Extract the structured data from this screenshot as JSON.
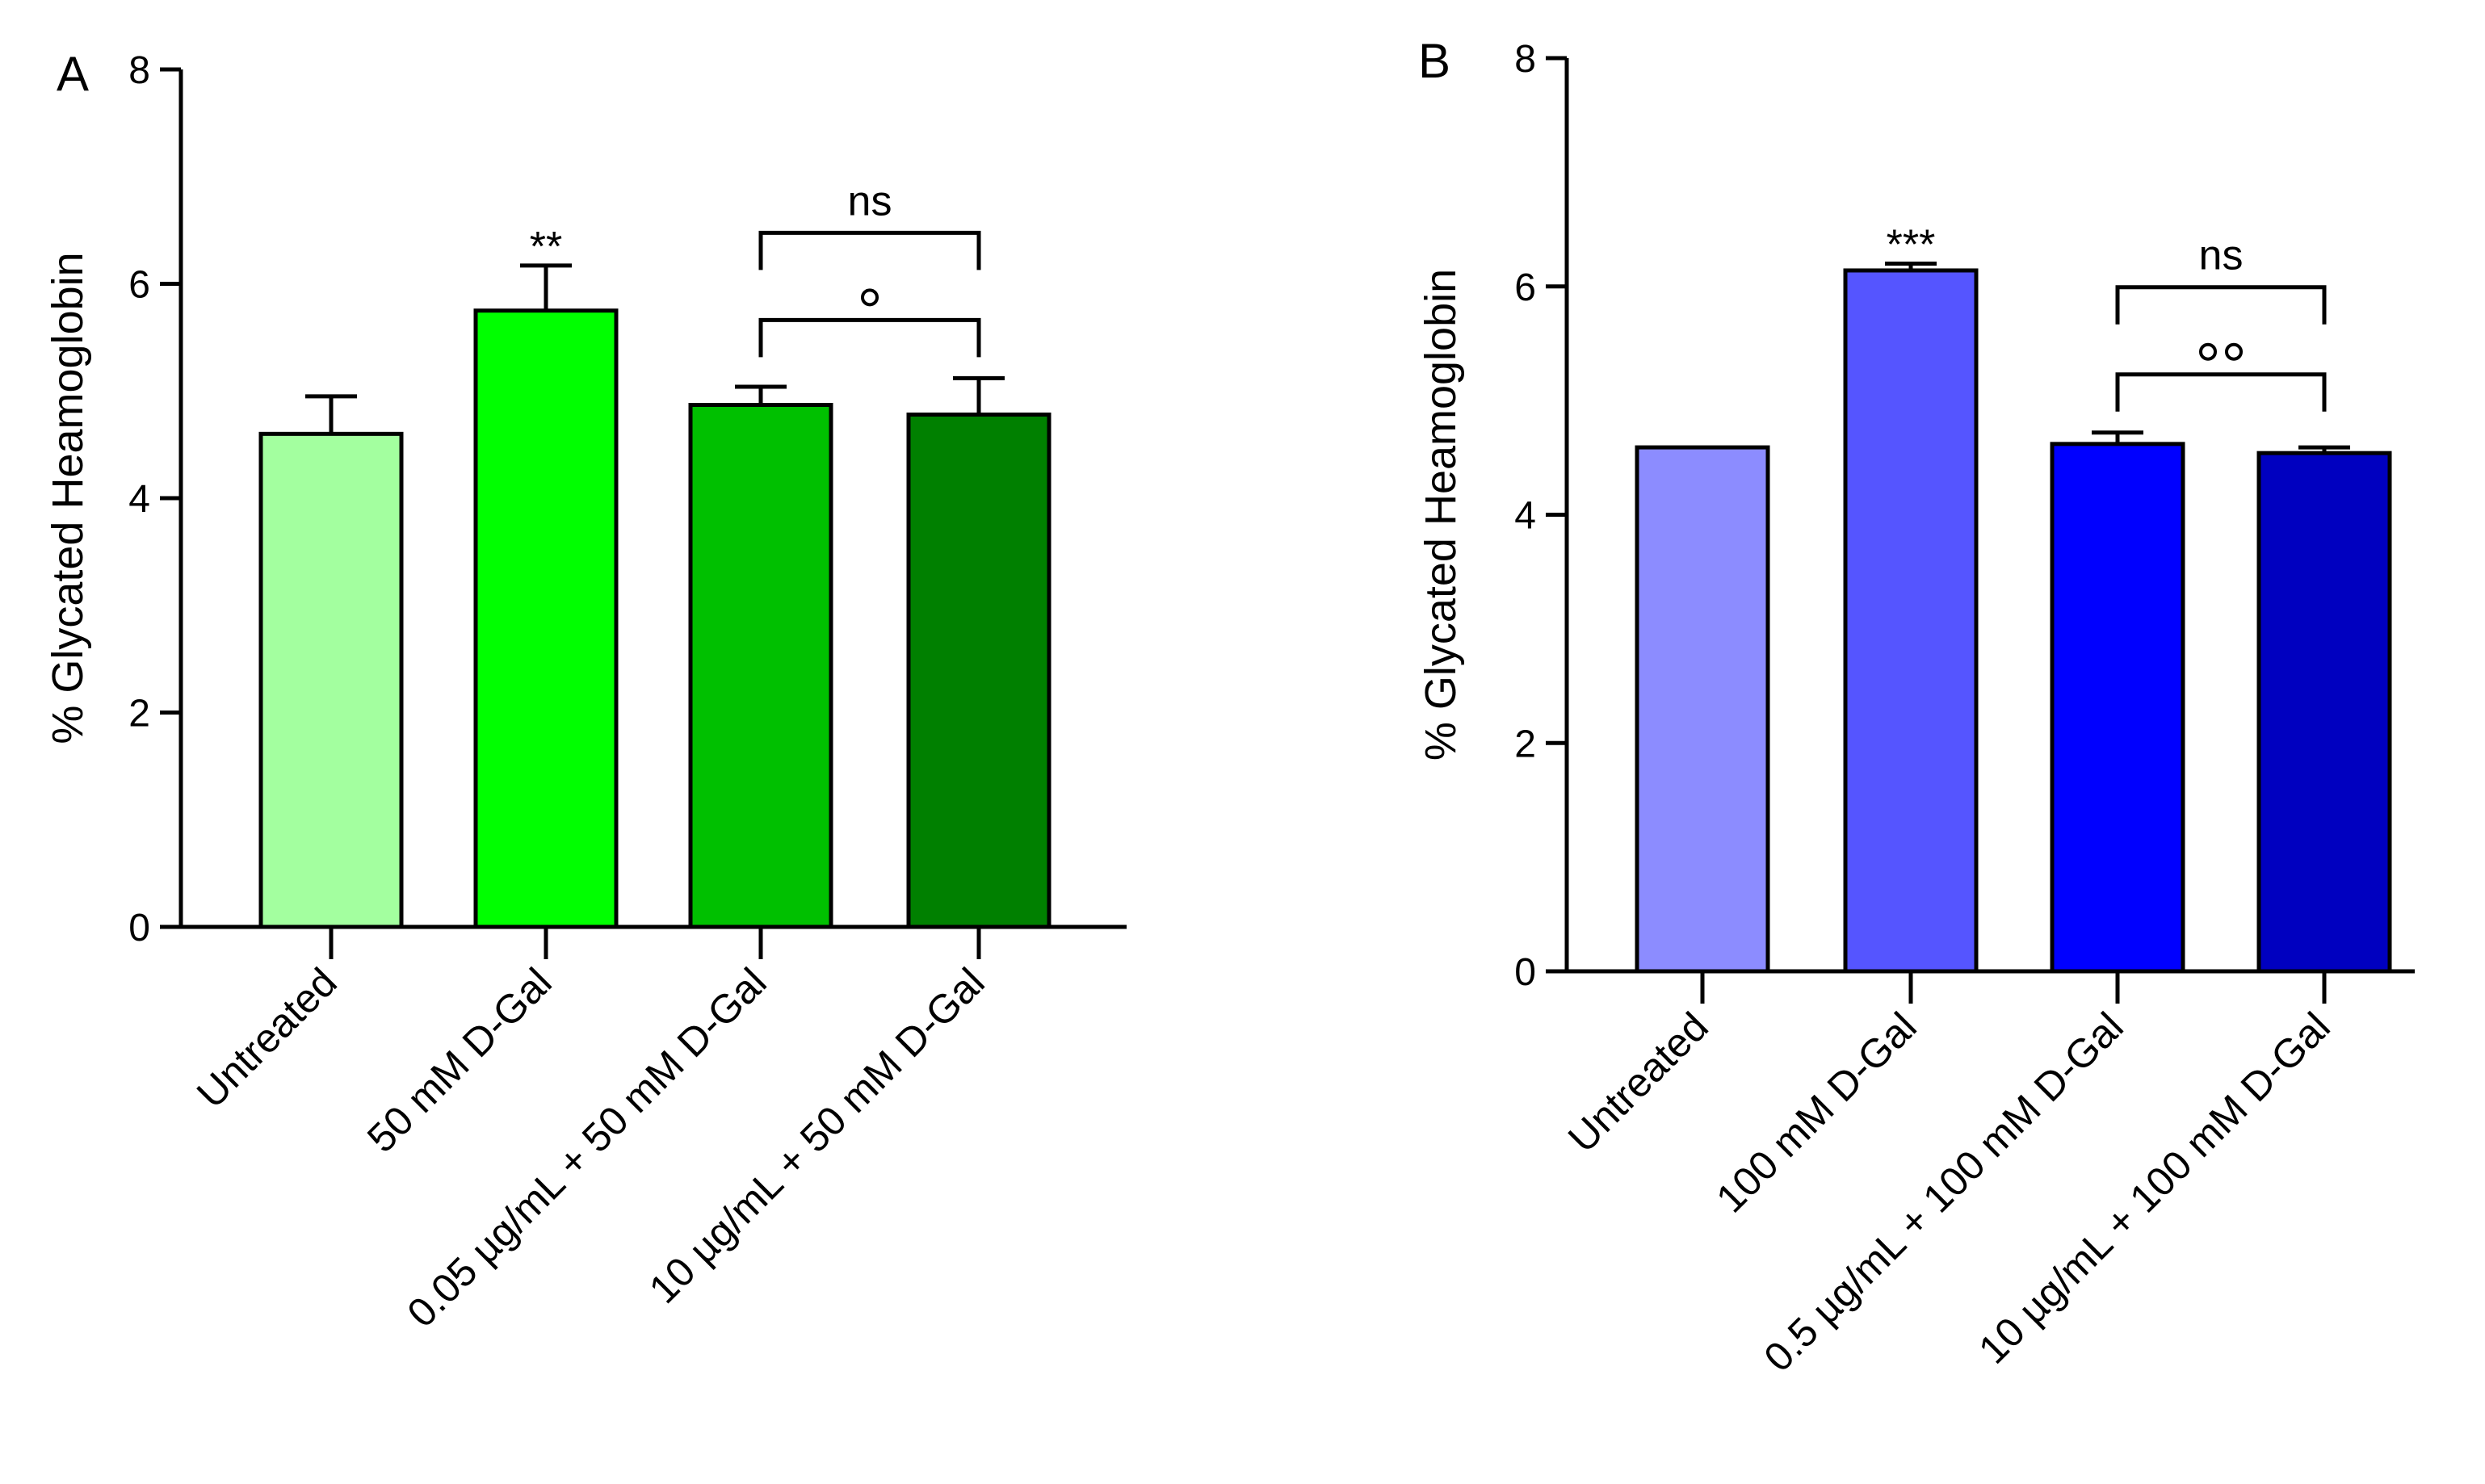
{
  "chart_data": [
    {
      "type": "bar",
      "panel": "A",
      "ylabel": "% Glycated Heamoglobin",
      "xlabel": "",
      "ylim": [
        0,
        8
      ],
      "yticks": [
        "0",
        "2",
        "4",
        "6",
        "8"
      ],
      "categories": [
        "Untreated",
        "50 mM D-Gal",
        "0.05 µg/mL + 50 mM D-Gal",
        "10 µg/mL + 50 mM D-Gal"
      ],
      "values": [
        4.6,
        5.75,
        4.87,
        4.78
      ],
      "errors": [
        0.35,
        0.42,
        0.17,
        0.34
      ],
      "colors": [
        "#a3ff9f",
        "#00ff00",
        "#00c000",
        "#008000"
      ],
      "star_annotations": [
        "",
        "**",
        "",
        ""
      ],
      "comparisons": [
        {
          "from": 2,
          "to": 3,
          "label": "ns",
          "circles": 0,
          "level": 1
        },
        {
          "from": 2,
          "to": 3,
          "label": "",
          "circles": 1,
          "level": 0
        }
      ]
    },
    {
      "type": "bar",
      "panel": "B",
      "ylabel": "% Glycated Heamoglobin",
      "xlabel": "",
      "ylim": [
        0,
        8
      ],
      "yticks": [
        "0",
        "2",
        "4",
        "6",
        "8"
      ],
      "categories": [
        "Untreated",
        "100 mM D-Gal",
        "0.5 µg/mL + 100 mM D-Gal",
        "10 µg/mL + 100 mM D-Gal"
      ],
      "values": [
        4.59,
        6.14,
        4.62,
        4.54
      ],
      "errors": [
        0.0,
        0.06,
        0.1,
        0.05
      ],
      "colors": [
        "#8c8cff",
        "#5555ff",
        "#0000ff",
        "#0000c0"
      ],
      "star_annotations": [
        "",
        "***",
        "",
        ""
      ],
      "comparisons": [
        {
          "from": 2,
          "to": 3,
          "label": "ns",
          "circles": 0,
          "level": 1
        },
        {
          "from": 2,
          "to": 3,
          "label": "",
          "circles": 2,
          "level": 0
        }
      ]
    }
  ]
}
